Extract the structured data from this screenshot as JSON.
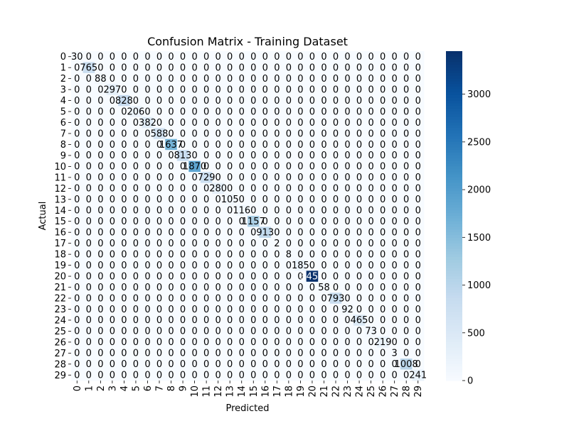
{
  "chart_data": {
    "type": "heatmap",
    "title": "Confusion Matrix - Training Dataset",
    "xlabel": "Predicted",
    "ylabel": "Actual",
    "x_categories": [
      "0",
      "1",
      "2",
      "3",
      "4",
      "5",
      "6",
      "7",
      "8",
      "9",
      "10",
      "11",
      "12",
      "13",
      "14",
      "15",
      "16",
      "17",
      "18",
      "19",
      "20",
      "21",
      "22",
      "23",
      "24",
      "25",
      "26",
      "27",
      "28",
      "29"
    ],
    "y_categories": [
      "0",
      "1",
      "2",
      "3",
      "4",
      "5",
      "6",
      "7",
      "8",
      "9",
      "10",
      "11",
      "12",
      "13",
      "14",
      "15",
      "16",
      "17",
      "18",
      "19",
      "20",
      "21",
      "22",
      "23",
      "24",
      "25",
      "26",
      "27",
      "28",
      "29"
    ],
    "diagonal_values": [
      30,
      765,
      88,
      297,
      828,
      206,
      382,
      588,
      1637,
      813,
      1870,
      729,
      280,
      105,
      116,
      1157,
      913,
      2,
      8,
      185,
      3451,
      58,
      793,
      92,
      465,
      73,
      219,
      3,
      1008,
      241
    ],
    "off_diagonal_value": 0,
    "colormap": "Blues",
    "colorbar": {
      "min": 0,
      "max": 3451,
      "ticks": [
        0,
        500,
        1000,
        1500,
        2000,
        2500,
        3000
      ]
    },
    "annot_light_color": "#000000",
    "annot_dark_color": "#ffffff",
    "grid": false
  }
}
